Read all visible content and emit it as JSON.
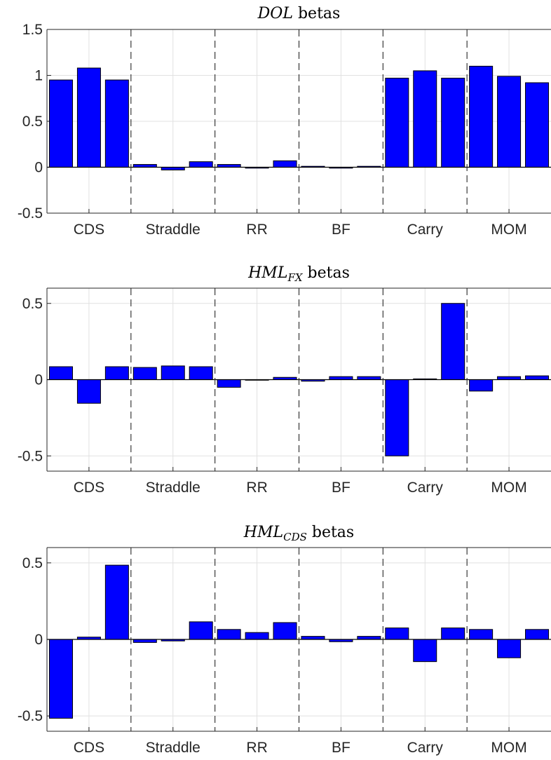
{
  "figure": {
    "bar_color": "#0000ff",
    "group_labels": [
      "CDS",
      "Straddle",
      "RR",
      "BF",
      "Carry",
      "MOM"
    ]
  },
  "chart_data": [
    {
      "type": "bar",
      "title_math": "DOL",
      "title_sub": "",
      "title_text": "betas",
      "ylim": [
        -0.5,
        1.5
      ],
      "yticks": [
        -0.5,
        0,
        0.5,
        1,
        1.5
      ],
      "ytick_labels": [
        "-0.5",
        "0",
        "0.5",
        "1",
        "1.5"
      ],
      "grid": true,
      "values": [
        0.95,
        1.08,
        0.95,
        0.03,
        -0.03,
        0.06,
        0.03,
        -0.01,
        0.07,
        0.01,
        -0.01,
        0.01,
        0.97,
        1.05,
        0.97,
        1.1,
        0.99,
        0.92
      ]
    },
    {
      "type": "bar",
      "title_math": "HML",
      "title_sub": "FX",
      "title_text": "betas",
      "ylim": [
        -0.6,
        0.6
      ],
      "yticks": [
        -0.5,
        0,
        0.5
      ],
      "ytick_labels": [
        "-0.5",
        "0",
        "0.5"
      ],
      "grid": true,
      "values": [
        0.085,
        -0.155,
        0.085,
        0.08,
        0.09,
        0.085,
        -0.05,
        0.0,
        0.015,
        -0.01,
        0.02,
        0.02,
        -0.5,
        0.005,
        0.5,
        -0.075,
        0.02,
        0.025
      ]
    },
    {
      "type": "bar",
      "title_math": "HML",
      "title_sub": "CDS",
      "title_text": "betas",
      "ylim": [
        -0.6,
        0.6
      ],
      "yticks": [
        -0.5,
        0,
        0.5
      ],
      "ytick_labels": [
        "-0.5",
        "0",
        "0.5"
      ],
      "grid": true,
      "values": [
        -0.515,
        0.015,
        0.485,
        -0.02,
        -0.01,
        0.115,
        0.065,
        0.045,
        0.11,
        0.02,
        -0.015,
        0.02,
        0.075,
        -0.145,
        0.075,
        0.065,
        -0.12,
        0.065
      ]
    }
  ]
}
